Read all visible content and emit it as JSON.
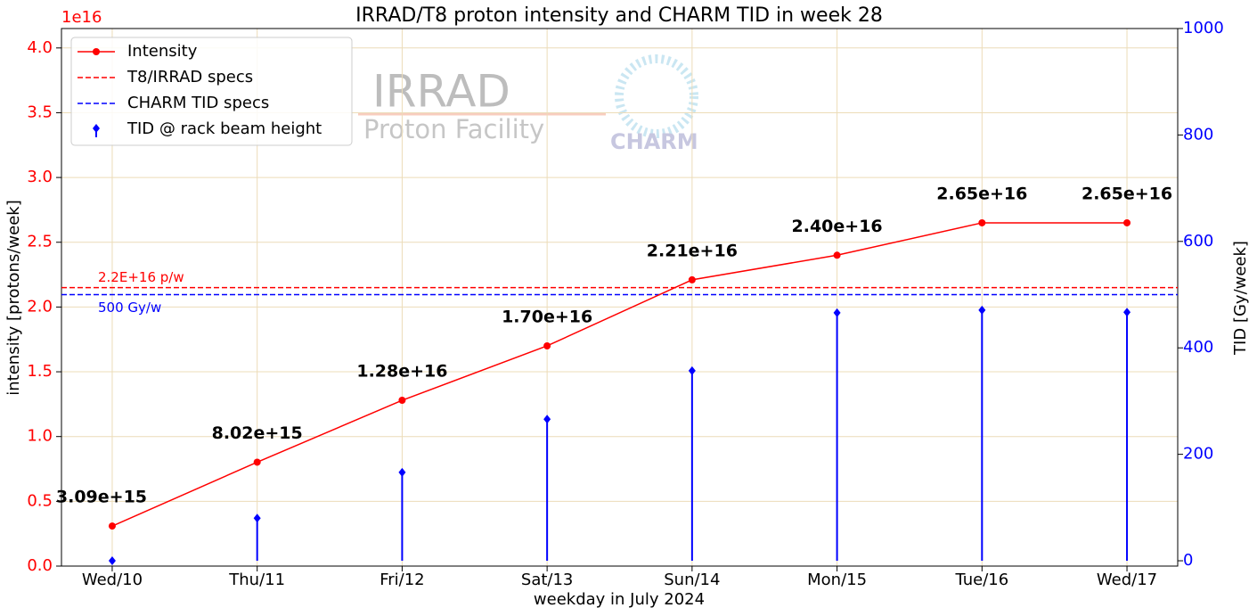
{
  "chart_data": {
    "type": "line-stem",
    "title": "IRRAD/T8 proton intensity and CHARM TID in week 28",
    "xlabel": "weekday in July 2024",
    "ylabel": "intensity [protons/week]",
    "y2label": "TID [Gy/week]",
    "y_offset_label": "1e16",
    "categories": [
      "Wed/10",
      "Thu/11",
      "Fri/12",
      "Sat/13",
      "Sun/14",
      "Mon/15",
      "Tue/16",
      "Wed/17"
    ],
    "series": [
      {
        "name": "Intensity",
        "color": "#ff0000",
        "values": [
          3090000000000000.0,
          8020000000000000.0,
          1.28e+16,
          1.7e+16,
          2.21e+16,
          2.4e+16,
          2.65e+16,
          2.65e+16
        ],
        "value_labels": [
          "3.09e+15",
          "8.02e+15",
          "1.28e+16",
          "1.70e+16",
          "2.21e+16",
          "2.40e+16",
          "2.65e+16",
          "2.65e+16"
        ]
      },
      {
        "name": "TID @ rack beam height",
        "color": "#0000ff",
        "axis": "y2",
        "values": [
          0,
          80,
          166,
          266,
          357,
          466,
          471,
          467
        ]
      }
    ],
    "hlines": [
      {
        "name": "T8/IRRAD specs",
        "color": "#ff0000",
        "value": 2.15e+16,
        "label": "2.2E+16 p/w"
      },
      {
        "name": "CHARM TID specs",
        "color": "#0000ff",
        "axis": "y2",
        "value": 500,
        "label": "500 Gy/w"
      }
    ],
    "ylim": [
      0,
      4.15e+16
    ],
    "yticks": [
      {
        "value": 0,
        "label": "0.0"
      },
      {
        "value": 5000000000000000.0,
        "label": "0.5"
      },
      {
        "value": 1e+16,
        "label": "1.0"
      },
      {
        "value": 1.5e+16,
        "label": "1.5"
      },
      {
        "value": 2e+16,
        "label": "2.0"
      },
      {
        "value": 2.5e+16,
        "label": "2.5"
      },
      {
        "value": 3e+16,
        "label": "3.0"
      },
      {
        "value": 3.5e+16,
        "label": "3.5"
      },
      {
        "value": 4e+16,
        "label": "4.0"
      }
    ],
    "y2lim": [
      -10,
      1000
    ],
    "y2ticks": [
      0,
      200,
      400,
      600,
      800,
      1000
    ],
    "grid": true,
    "legend": "upper left",
    "watermark": [
      "IRRAD",
      "Proton Facility",
      "CHARM"
    ]
  }
}
